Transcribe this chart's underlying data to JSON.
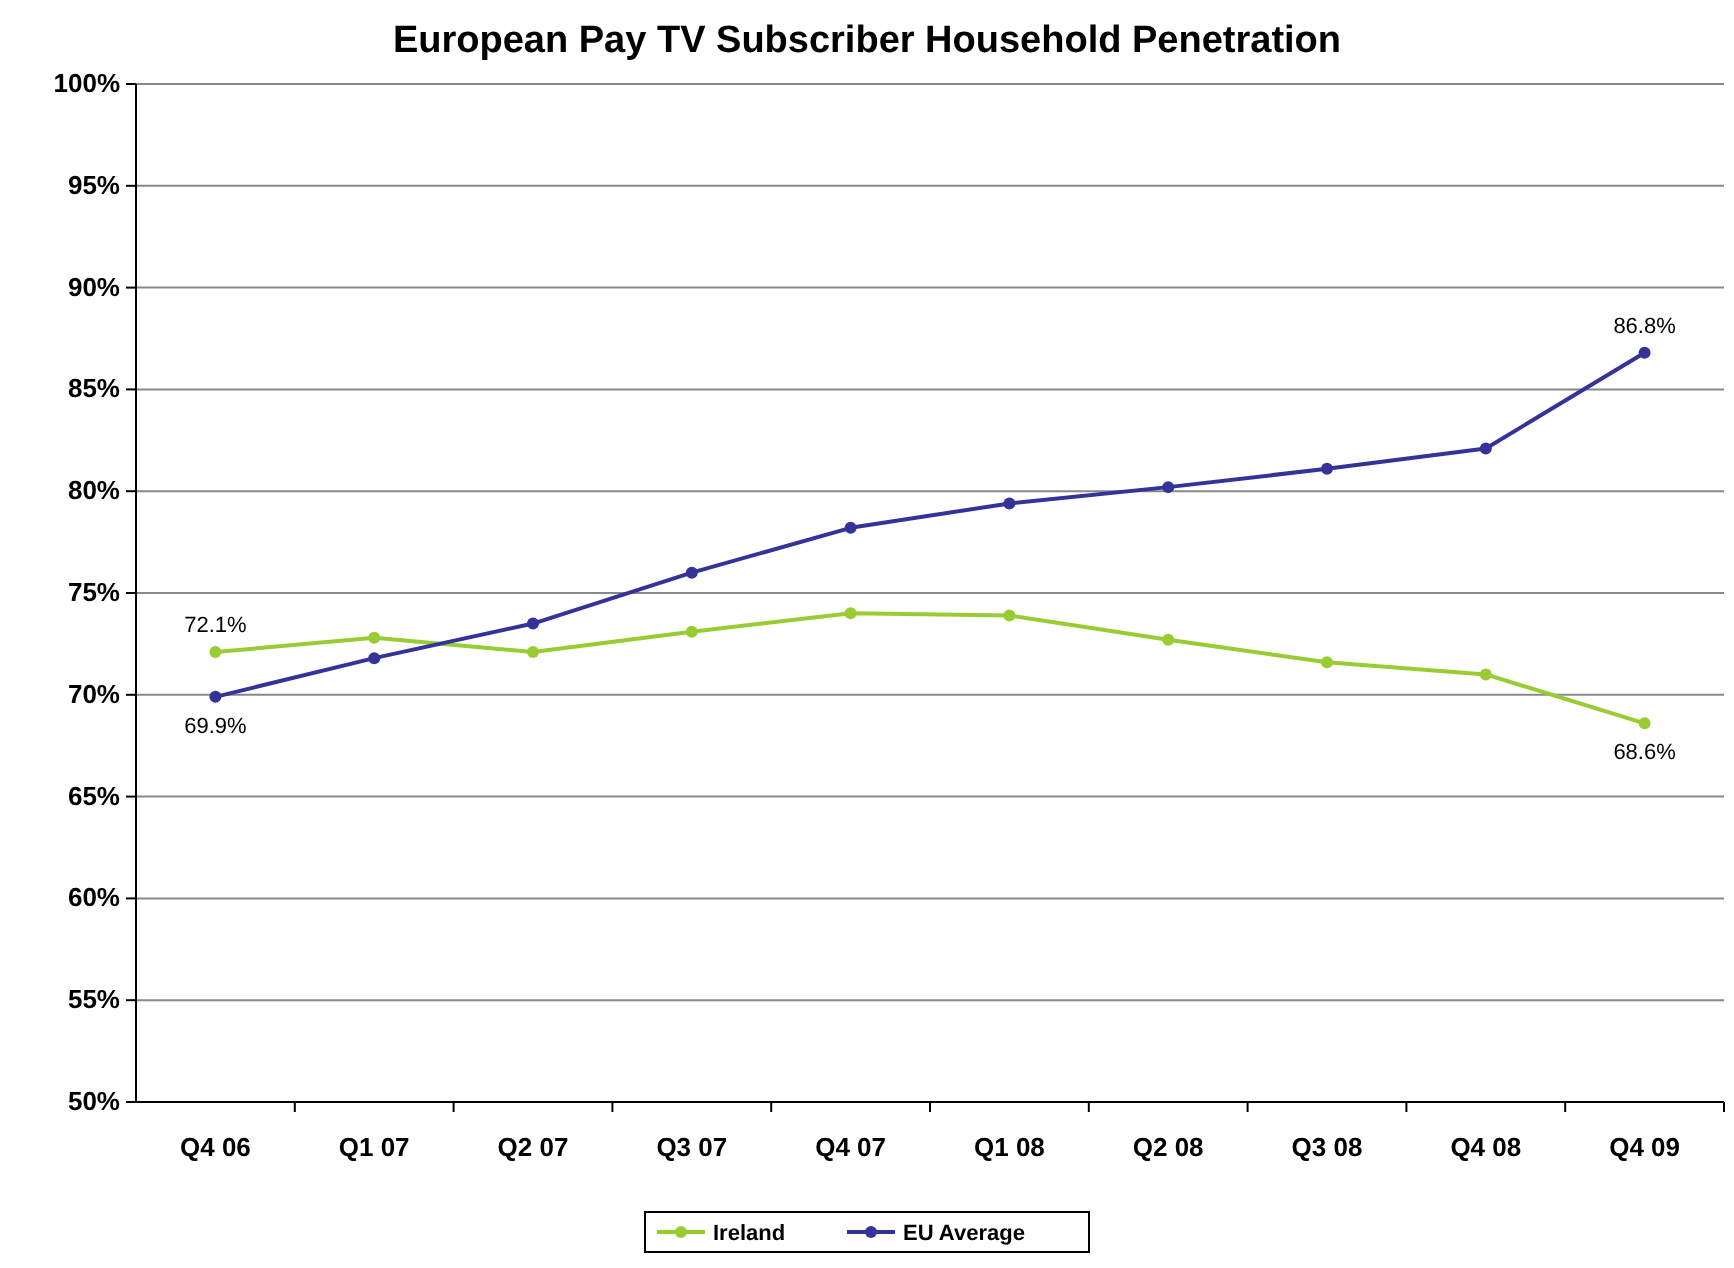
{
  "chart_data": {
    "type": "line",
    "title": "European Pay TV Subscriber Household Penetration",
    "categories": [
      "Q4 06",
      "Q1 07",
      "Q2 07",
      "Q3 07",
      "Q4 07",
      "Q1 08",
      "Q2 08",
      "Q3 08",
      "Q4 08",
      "Q4 09"
    ],
    "series": [
      {
        "name": "Ireland",
        "color": "#99cc33",
        "values": [
          72.1,
          72.8,
          72.1,
          73.1,
          74.0,
          73.9,
          72.7,
          71.6,
          71.0,
          68.6
        ],
        "value_labels": [
          "72.1%",
          null,
          null,
          null,
          null,
          null,
          null,
          null,
          null,
          "68.6%"
        ]
      },
      {
        "name": "EU Average",
        "color": "#333399",
        "values": [
          69.9,
          71.8,
          73.5,
          76.0,
          78.2,
          79.4,
          80.2,
          81.1,
          82.1,
          86.8
        ],
        "value_labels": [
          "69.9%",
          null,
          null,
          null,
          null,
          null,
          null,
          null,
          null,
          "86.8%"
        ]
      }
    ],
    "ylim": [
      50,
      100
    ],
    "yticks": [
      {
        "value": 50,
        "label": "50%"
      },
      {
        "value": 55,
        "label": "55%"
      },
      {
        "value": 60,
        "label": "60%"
      },
      {
        "value": 65,
        "label": "65%"
      },
      {
        "value": 70,
        "label": "70%"
      },
      {
        "value": 75,
        "label": "75%"
      },
      {
        "value": 80,
        "label": "80%"
      },
      {
        "value": 85,
        "label": "85%"
      },
      {
        "value": 90,
        "label": "90%"
      },
      {
        "value": 95,
        "label": "95%"
      },
      {
        "value": 100,
        "label": "100%"
      }
    ],
    "grid": "y",
    "legend": "bottom",
    "marker": "circle",
    "line_style": "solid"
  }
}
